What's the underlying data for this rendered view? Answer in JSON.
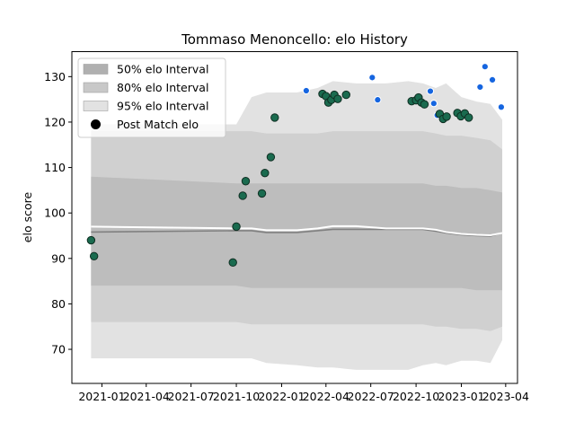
{
  "chart_data": {
    "type": "line",
    "title": "Tommaso Menoncello: elo History",
    "xlabel": "",
    "ylabel": "elo score",
    "x_is_date": true,
    "xlim": [
      "2020-11-01",
      "2023-04-25"
    ],
    "ylim": [
      62.5,
      135.5
    ],
    "x_tick_labels": [
      "2021-01",
      "2021-04",
      "2021-07",
      "2021-10",
      "2022-01",
      "2022-04",
      "2022-07",
      "2022-10",
      "2023-01",
      "2023-04"
    ],
    "y_ticks": [
      70,
      80,
      90,
      100,
      110,
      120,
      130
    ],
    "grid": false,
    "legend_position": "top-left",
    "legend": [
      {
        "label": "50% elo Interval",
        "kind": "band",
        "color": "#b0b0b0"
      },
      {
        "label": "80% elo Interval",
        "kind": "band",
        "color": "#c8c8c8"
      },
      {
        "label": "95% elo Interval",
        "kind": "band",
        "color": "#e2e2e2"
      },
      {
        "label": "Post Match elo",
        "kind": "marker",
        "color": "#000000"
      }
    ],
    "colors": {
      "band_95": "#e2e2e2",
      "band_80": "#d0d0d0",
      "band_50": "#bdbdbd",
      "median_line": "#808080",
      "mean_line": "#ffffff",
      "match_point": "#1a6b4f",
      "match_edge": "#0f2e22",
      "forecast_point": "#1565e0",
      "forecast_edge": "#ffffff"
    },
    "bands": {
      "x": [
        "2020-12-10",
        "2021-10-01",
        "2021-11-01",
        "2021-12-01",
        "2022-02-01",
        "2022-03-15",
        "2022-04-15",
        "2022-06-01",
        "2022-08-01",
        "2022-09-15",
        "2022-10-15",
        "2022-11-10",
        "2022-12-01",
        "2023-01-01",
        "2023-02-01",
        "2023-03-01",
        "2023-03-25"
      ],
      "p95_upper": [
        119.5,
        119.5,
        125.5,
        126.5,
        126.5,
        127.5,
        129,
        128.5,
        128.5,
        129,
        128.5,
        127.5,
        128.5,
        125.5,
        124.5,
        124,
        120.5
      ],
      "p95_lower": [
        68,
        68,
        68,
        67,
        66.5,
        66,
        66,
        65.5,
        65.5,
        65.5,
        66.5,
        67,
        66.5,
        67.5,
        67.5,
        67,
        72
      ],
      "p80_upper": [
        118,
        118,
        118,
        117.5,
        117.5,
        117.5,
        118,
        118,
        118,
        118,
        118,
        117.5,
        117,
        117,
        116.5,
        116,
        114
      ],
      "p80_lower": [
        76,
        76,
        75.5,
        75.5,
        75.5,
        75.5,
        75.5,
        75.5,
        75.5,
        75.5,
        75.5,
        75,
        75,
        74.5,
        74.5,
        74,
        75
      ],
      "p50_upper": [
        108,
        106.5,
        106.5,
        106.5,
        106.5,
        106.5,
        106.5,
        106.5,
        106.5,
        106.5,
        106.5,
        106,
        106,
        105.5,
        105.5,
        105,
        104.5
      ],
      "p50_lower": [
        84,
        84,
        83.5,
        83.5,
        83.5,
        83.5,
        83.5,
        83.5,
        83.5,
        83.5,
        83.5,
        83.5,
        83.5,
        83.5,
        83,
        83,
        83
      ]
    },
    "median_line": {
      "x": [
        "2020-12-10",
        "2021-10-01",
        "2021-11-01",
        "2021-12-01",
        "2022-02-01",
        "2022-03-15",
        "2022-04-15",
        "2022-06-01",
        "2022-08-01",
        "2022-09-15",
        "2022-10-15",
        "2022-11-10",
        "2022-12-01",
        "2023-01-01",
        "2023-02-01",
        "2023-03-01",
        "2023-03-25"
      ],
      "y": [
        95.8,
        96.1,
        96.1,
        95.7,
        95.7,
        96.1,
        96.4,
        96.4,
        96.4,
        96.4,
        96.4,
        96.0,
        95.6,
        95.2,
        95.0,
        94.9,
        95.6
      ]
    },
    "mean_line": {
      "x": [
        "2020-12-10",
        "2021-10-01",
        "2021-11-01",
        "2021-12-01",
        "2022-02-01",
        "2022-03-15",
        "2022-04-15",
        "2022-06-01",
        "2022-08-01",
        "2022-09-15",
        "2022-10-15",
        "2022-11-10",
        "2022-12-01",
        "2023-01-01",
        "2023-02-01",
        "2023-03-01",
        "2023-03-25"
      ],
      "y": [
        97.0,
        96.6,
        96.6,
        96.2,
        96.2,
        96.6,
        97.1,
        97.1,
        96.6,
        96.6,
        96.6,
        96.3,
        95.8,
        95.4,
        95.2,
        95.1,
        95.6
      ]
    },
    "post_match_elo": [
      {
        "x": "2020-12-10",
        "y": 94.0
      },
      {
        "x": "2020-12-16",
        "y": 90.5
      },
      {
        "x": "2021-09-24",
        "y": 89.1
      },
      {
        "x": "2021-10-01",
        "y": 97.0
      },
      {
        "x": "2021-10-14",
        "y": 103.8
      },
      {
        "x": "2021-10-20",
        "y": 107.0
      },
      {
        "x": "2021-11-22",
        "y": 104.3
      },
      {
        "x": "2021-11-28",
        "y": 108.8
      },
      {
        "x": "2021-12-10",
        "y": 112.3
      },
      {
        "x": "2021-12-18",
        "y": 121.0
      },
      {
        "x": "2022-03-25",
        "y": 126.2
      },
      {
        "x": "2022-04-01",
        "y": 125.7
      },
      {
        "x": "2022-04-06",
        "y": 124.3
      },
      {
        "x": "2022-04-12",
        "y": 124.9
      },
      {
        "x": "2022-04-18",
        "y": 126.0
      },
      {
        "x": "2022-04-25",
        "y": 125.1
      },
      {
        "x": "2022-05-12",
        "y": 126.0
      },
      {
        "x": "2022-09-22",
        "y": 124.6
      },
      {
        "x": "2022-10-01",
        "y": 124.8
      },
      {
        "x": "2022-10-06",
        "y": 125.4
      },
      {
        "x": "2022-10-12",
        "y": 124.3
      },
      {
        "x": "2022-10-18",
        "y": 123.9
      },
      {
        "x": "2022-11-18",
        "y": 121.8
      },
      {
        "x": "2022-11-25",
        "y": 120.7
      },
      {
        "x": "2022-12-02",
        "y": 121.2
      },
      {
        "x": "2022-12-24",
        "y": 122.0
      },
      {
        "x": "2022-12-31",
        "y": 121.3
      },
      {
        "x": "2023-01-08",
        "y": 121.9
      },
      {
        "x": "2023-01-16",
        "y": 121.0
      }
    ],
    "forecast_elo": [
      {
        "x": "2022-02-20",
        "y": 126.9
      },
      {
        "x": "2022-07-04",
        "y": 129.8
      },
      {
        "x": "2022-07-15",
        "y": 124.9
      },
      {
        "x": "2022-10-30",
        "y": 126.8
      },
      {
        "x": "2022-11-06",
        "y": 124.1
      },
      {
        "x": "2022-11-13",
        "y": 121.5
      },
      {
        "x": "2023-02-08",
        "y": 127.7
      },
      {
        "x": "2023-02-18",
        "y": 132.2
      },
      {
        "x": "2023-03-05",
        "y": 129.3
      },
      {
        "x": "2023-03-23",
        "y": 123.3
      }
    ]
  }
}
